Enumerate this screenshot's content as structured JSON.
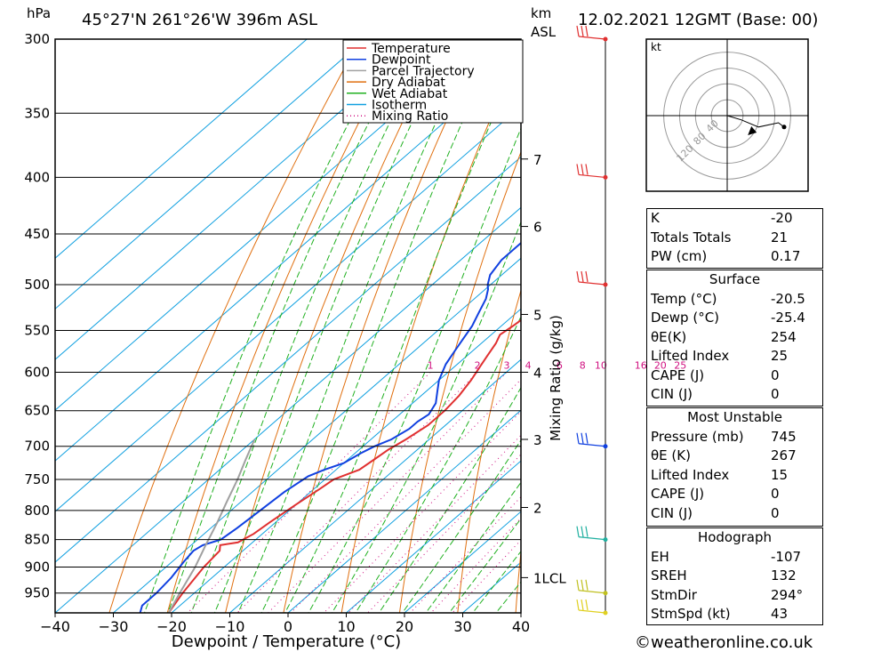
{
  "header": {
    "pressure_unit": "hPa",
    "location": "45°27'N  261°26'W  396m  ASL",
    "height_unit_top": "km",
    "height_unit_bottom": "ASL",
    "datetime": "12.02.2021  12GMT  (Base: 00)"
  },
  "legend": [
    {
      "label": "Temperature",
      "color": "#e03030",
      "style": "solid"
    },
    {
      "label": "Dewpoint",
      "color": "#1040e0",
      "style": "solid"
    },
    {
      "label": "Parcel Trajectory",
      "color": "#a0a0a0",
      "style": "solid"
    },
    {
      "label": "Dry Adiabat",
      "color": "#e07010",
      "style": "solid"
    },
    {
      "label": "Wet Adiabat",
      "color": "#20b020",
      "style": "solid"
    },
    {
      "label": "Isotherm",
      "color": "#10a0e0",
      "style": "solid"
    },
    {
      "label": "Mixing Ratio",
      "color": "#d01080",
      "style": "dotted"
    }
  ],
  "chart_data": {
    "type": "line",
    "xlabel": "Dewpoint / Temperature (°C)",
    "x_ticks": [
      -40,
      -30,
      -20,
      -10,
      0,
      10,
      20,
      30,
      40
    ],
    "xlim": [
      -40,
      40
    ],
    "y_scale": "log-pressure",
    "ylim": [
      300,
      990
    ],
    "pressure_levels": [
      300,
      350,
      400,
      450,
      500,
      550,
      600,
      650,
      700,
      750,
      800,
      850,
      900,
      950
    ],
    "height_ticks_km": [
      {
        "label": "7",
        "p": 385
      },
      {
        "label": "6",
        "p": 443
      },
      {
        "label": "5",
        "p": 532
      },
      {
        "label": "4",
        "p": 600
      },
      {
        "label": "3",
        "p": 690
      },
      {
        "label": "2",
        "p": 795
      },
      {
        "label": "1LCL",
        "p": 920
      }
    ],
    "right_axis_label": "Mixing Ratio (g/kg)",
    "mixing_ratio_labels": [
      "1",
      "2",
      "3",
      "4",
      "6",
      "8",
      "10",
      "16",
      "20",
      "25"
    ],
    "mixing_ratio_values": [
      1,
      2,
      3,
      4,
      6,
      8,
      10,
      16,
      20,
      25
    ],
    "series": [
      {
        "name": "Temperature",
        "color": "#e03030",
        "points": [
          [
            -20.5,
            990
          ],
          [
            -22,
            950
          ],
          [
            -23.5,
            900
          ],
          [
            -24,
            870
          ],
          [
            -25,
            860
          ],
          [
            -22.5,
            855
          ],
          [
            -21.5,
            840
          ],
          [
            -21,
            820
          ],
          [
            -20,
            790
          ],
          [
            -19,
            765
          ],
          [
            -18.5,
            750
          ],
          [
            -16,
            735
          ],
          [
            -15.5,
            720
          ],
          [
            -15,
            705
          ],
          [
            -14,
            690
          ],
          [
            -13,
            670
          ],
          [
            -13,
            650
          ],
          [
            -13.5,
            630
          ],
          [
            -14.5,
            610
          ],
          [
            -15.5,
            595
          ],
          [
            -16.5,
            580
          ],
          [
            -17.5,
            565
          ],
          [
            -18.5,
            555
          ],
          [
            -18,
            545
          ],
          [
            -17.5,
            530
          ],
          [
            -17,
            515
          ],
          [
            -17,
            500
          ],
          [
            -18,
            490
          ],
          [
            -18,
            470
          ],
          [
            -19,
            445
          ],
          [
            -20,
            425
          ],
          [
            -21,
            405
          ],
          [
            -21.5,
            395
          ],
          [
            -20,
            380
          ],
          [
            -17,
            365
          ],
          [
            -15,
            355
          ],
          [
            -12.5,
            340
          ],
          [
            -10,
            325
          ],
          [
            -8.5,
            310
          ],
          [
            -7.5,
            300
          ]
        ]
      },
      {
        "name": "Dewpoint",
        "color": "#1040e0",
        "points": [
          [
            -25.4,
            990
          ],
          [
            -26.5,
            975
          ],
          [
            -26.5,
            950
          ],
          [
            -27,
            920
          ],
          [
            -28,
            890
          ],
          [
            -28.5,
            870
          ],
          [
            -28,
            860
          ],
          [
            -26,
            850
          ],
          [
            -25.5,
            830
          ],
          [
            -25,
            800
          ],
          [
            -24.5,
            770
          ],
          [
            -23.5,
            745
          ],
          [
            -22,
            735
          ],
          [
            -20,
            725
          ],
          [
            -19,
            710
          ],
          [
            -18,
            700
          ],
          [
            -16.5,
            690
          ],
          [
            -15.5,
            675
          ],
          [
            -15.5,
            665
          ],
          [
            -15,
            655
          ],
          [
            -16,
            640
          ],
          [
            -18,
            625
          ],
          [
            -20,
            610
          ],
          [
            -21,
            600
          ],
          [
            -22,
            590
          ],
          [
            -23,
            575
          ],
          [
            -24,
            560
          ],
          [
            -25,
            545
          ],
          [
            -26.5,
            530
          ],
          [
            -28,
            515
          ],
          [
            -29.5,
            505
          ],
          [
            -30.5,
            500
          ],
          [
            -32,
            490
          ],
          [
            -33,
            475
          ],
          [
            -33,
            455
          ],
          [
            -33,
            440
          ],
          [
            -33,
            425
          ],
          [
            -33.5,
            410
          ],
          [
            -34.5,
            400
          ],
          [
            -35,
            390
          ],
          [
            -34.5,
            370
          ],
          [
            -34.5,
            350
          ],
          [
            -34.5,
            330
          ],
          [
            -35.5,
            310
          ],
          [
            -36,
            300
          ]
        ]
      },
      {
        "name": "Parcel Trajectory",
        "color": "#a0a0a0",
        "points": [
          [
            -20.5,
            990
          ],
          [
            -22.5,
            950
          ],
          [
            -25,
            900
          ],
          [
            -27.5,
            860
          ],
          [
            -30,
            820
          ],
          [
            -32.5,
            785
          ],
          [
            -35,
            750
          ],
          [
            -37.5,
            720
          ],
          [
            -40,
            690
          ]
        ]
      }
    ]
  },
  "wind_barbs": [
    {
      "p": 300,
      "color": "#e03030"
    },
    {
      "p": 400,
      "color": "#e03030"
    },
    {
      "p": 500,
      "color": "#e03030"
    },
    {
      "p": 700,
      "color": "#1040e0"
    },
    {
      "p": 850,
      "color": "#20b0a0"
    },
    {
      "p": 950,
      "color": "#c0c020"
    },
    {
      "p": 990,
      "color": "#e0d020"
    }
  ],
  "hodograph": {
    "unit": "kt",
    "ring_labels": [
      "40",
      "80",
      "120"
    ],
    "trace": [
      [
        0,
        0
      ],
      [
        10,
        -3
      ],
      [
        22,
        -8
      ],
      [
        36,
        -5
      ],
      [
        40,
        -8
      ]
    ],
    "storm_motion": [
      17,
      -10
    ]
  },
  "indices": {
    "top": [
      {
        "label": "K",
        "value": "-20"
      },
      {
        "label": "Totals Totals",
        "value": "21"
      },
      {
        "label": "PW (cm)",
        "value": "0.17"
      }
    ],
    "surface": {
      "title": "Surface",
      "rows": [
        {
          "label": "Temp (°C)",
          "value": "-20.5"
        },
        {
          "label": "Dewp (°C)",
          "value": "-25.4"
        },
        {
          "label": "θE(K)",
          "value": "254"
        },
        {
          "label": "Lifted Index",
          "value": "25"
        },
        {
          "label": "CAPE (J)",
          "value": "0"
        },
        {
          "label": "CIN (J)",
          "value": "0"
        }
      ]
    },
    "most_unstable": {
      "title": "Most Unstable",
      "rows": [
        {
          "label": "Pressure (mb)",
          "value": "745"
        },
        {
          "label": "θE (K)",
          "value": "267"
        },
        {
          "label": "Lifted Index",
          "value": "15"
        },
        {
          "label": "CAPE (J)",
          "value": "0"
        },
        {
          "label": "CIN (J)",
          "value": "0"
        }
      ]
    },
    "hodograph": {
      "title": "Hodograph",
      "rows": [
        {
          "label": "EH",
          "value": "-107"
        },
        {
          "label": "SREH",
          "value": "132"
        },
        {
          "label": "StmDir",
          "value": "294°"
        },
        {
          "label": "StmSpd (kt)",
          "value": "43"
        }
      ]
    }
  },
  "footer": {
    "copyright": "©weatheronline.co.uk"
  }
}
